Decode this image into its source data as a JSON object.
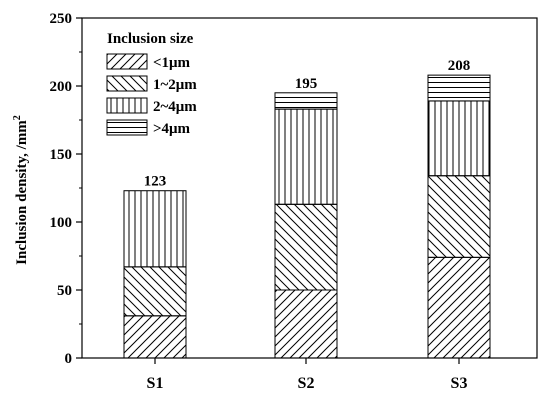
{
  "chart_data": {
    "type": "bar",
    "stacked": true,
    "categories": [
      "S1",
      "S2",
      "S3"
    ],
    "series": [
      {
        "name": "<1μm",
        "values": [
          31,
          50,
          74
        ],
        "pattern": "diag-up"
      },
      {
        "name": "1~2μm",
        "values": [
          36,
          63,
          60
        ],
        "pattern": "diag-down"
      },
      {
        "name": "2~4μm",
        "values": [
          56,
          70,
          55
        ],
        "pattern": "vertical"
      },
      {
        "name": ">4μm",
        "values": [
          0,
          12,
          19
        ],
        "pattern": "horizontal"
      }
    ],
    "totals": [
      "123",
      "195",
      "208"
    ],
    "ylabel": "Inclusion density, /mm",
    "ylabel_sup": "2",
    "legend_title": "Inclusion size",
    "ylim": [
      0,
      250
    ],
    "yticks": [
      "0",
      "50",
      "100",
      "150",
      "200",
      "250"
    ],
    "grid": false,
    "legend_position": "top-left"
  }
}
